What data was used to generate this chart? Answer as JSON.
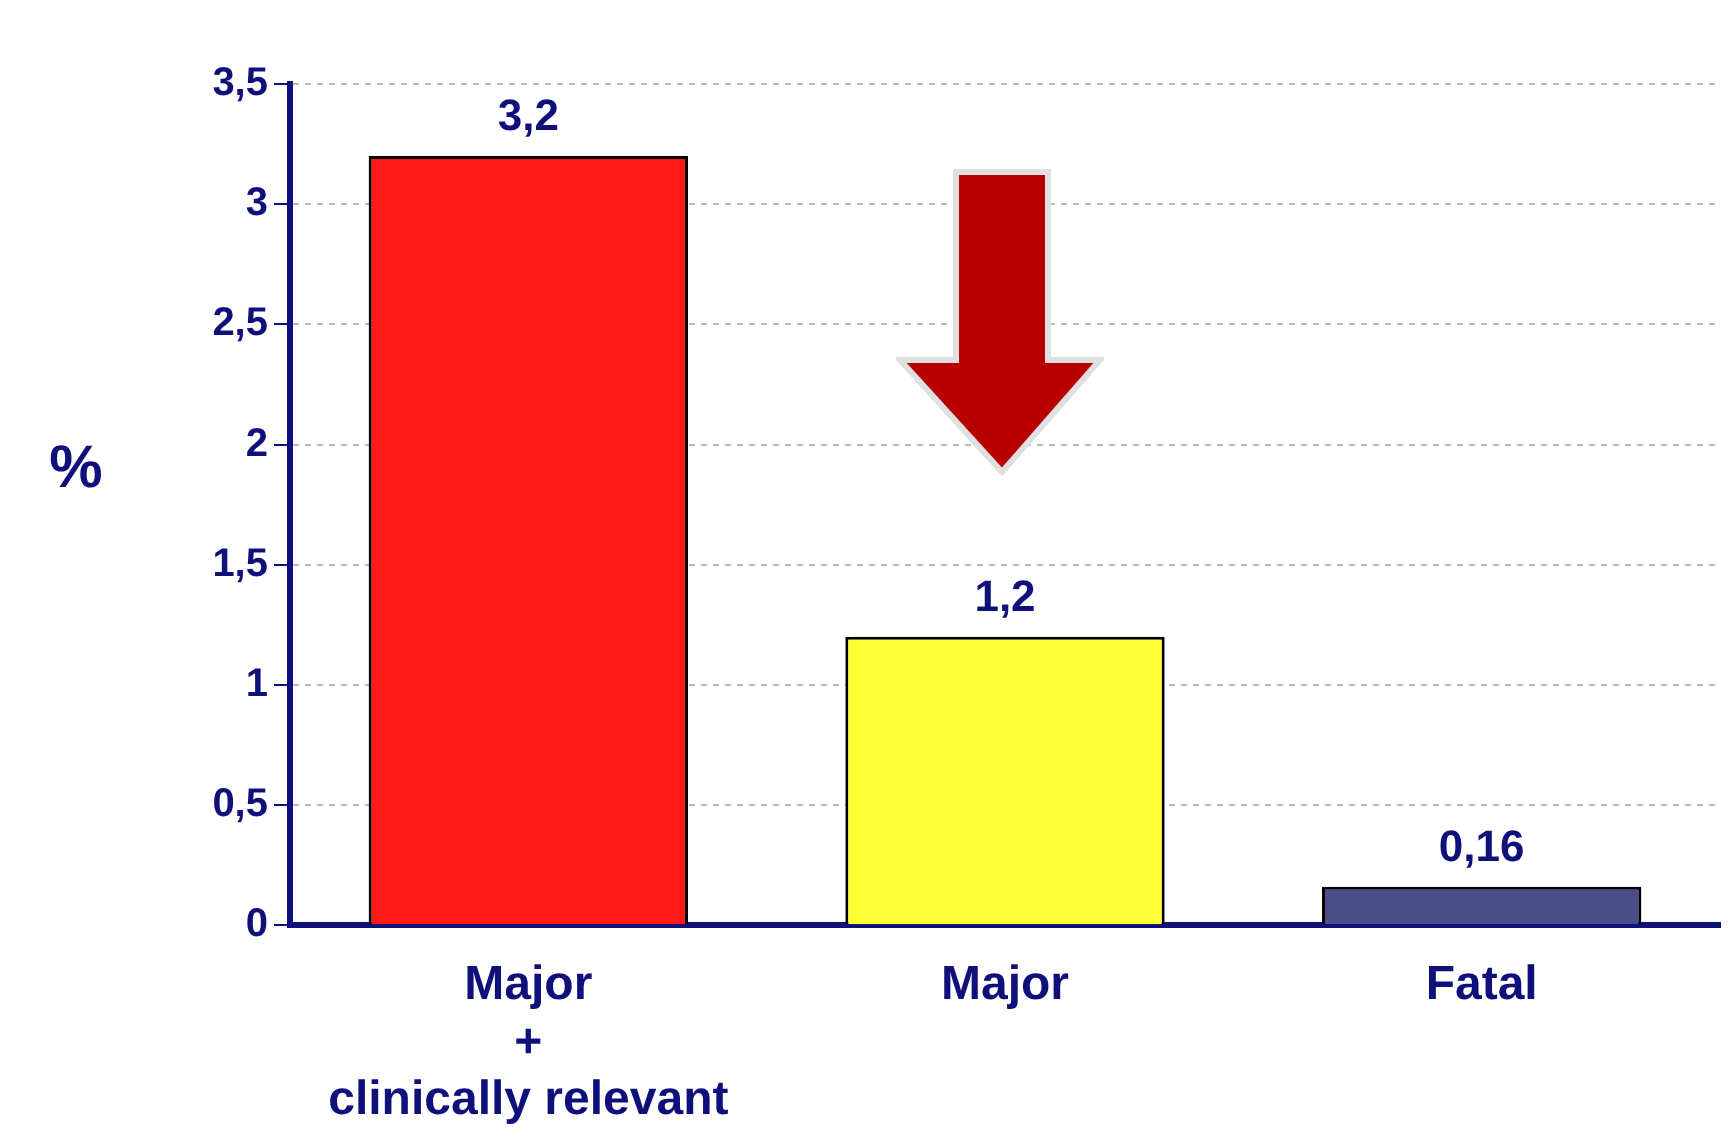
{
  "chart_data": {
    "type": "bar",
    "ylabel": "%",
    "categories": [
      "Major\n+\nclinically relevant",
      "Major",
      "Fatal"
    ],
    "values": [
      3.2,
      1.2,
      0.16
    ],
    "value_labels": [
      "3,2",
      "1,2",
      "0,16"
    ],
    "colors": [
      "#ff1a1a",
      "#ffff33",
      "#4a4f8a"
    ],
    "ylim": [
      0,
      3.5
    ],
    "yticks": [
      0,
      {
        "value": 0.5,
        "label": "0,5"
      },
      1,
      {
        "value": 1.5,
        "label": "1,5"
      },
      2,
      {
        "value": 2.5,
        "label": "2,5"
      },
      3,
      {
        "value": 3.5,
        "label": "3,5"
      }
    ],
    "grid": "y"
  }
}
